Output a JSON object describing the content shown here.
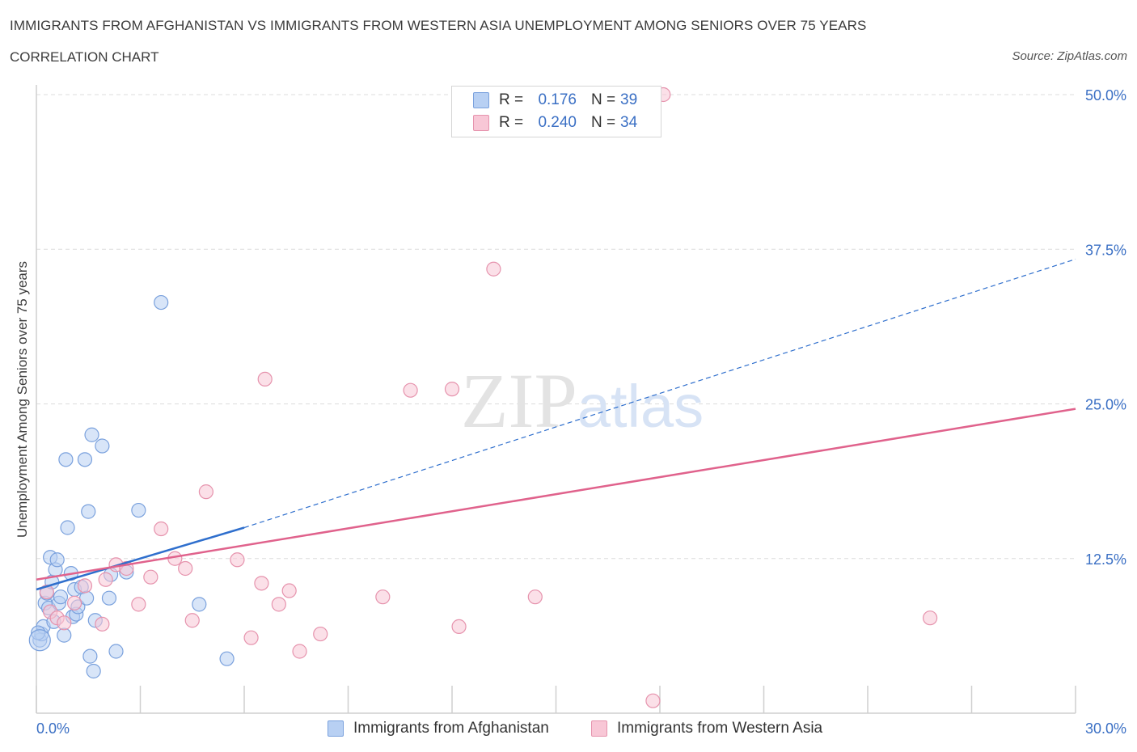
{
  "header": {
    "title": "IMMIGRANTS FROM AFGHANISTAN VS IMMIGRANTS FROM WESTERN ASIA UNEMPLOYMENT AMONG SENIORS OVER 75 YEARS",
    "subtitle": "CORRELATION CHART",
    "source": "Source: ZipAtlas.com"
  },
  "legend": {
    "rows": [
      {
        "r_label": "R =",
        "r_value": "0.176",
        "n_label": "N =",
        "n_value": "39"
      },
      {
        "r_label": "R =",
        "r_value": "0.240",
        "n_label": "N =",
        "n_value": "34"
      }
    ]
  },
  "bottom_legend": [
    "Immigrants from Afghanistan",
    "Immigrants from Western Asia"
  ],
  "chart_data": {
    "type": "scatter",
    "title": "IMMIGRANTS FROM AFGHANISTAN VS IMMIGRANTS FROM WESTERN ASIA UNEMPLOYMENT AMONG SENIORS OVER 75 YEARS",
    "subtitle": "CORRELATION CHART",
    "xlabel": "",
    "ylabel": "Unemployment Among Seniors over 75 years",
    "xlim": [
      0,
      30
    ],
    "ylim": [
      0,
      50
    ],
    "x_tick_labels": [
      "0.0%",
      "30.0%"
    ],
    "y_tick_values": [
      12.5,
      25,
      37.5,
      50
    ],
    "y_tick_labels": [
      "12.5%",
      "25.0%",
      "37.5%",
      "50.0%"
    ],
    "grid": true,
    "watermark": "ZIPatlas",
    "colors": {
      "series1_fill": "#b8d0f3",
      "series1_stroke": "#7aa1dd",
      "series1_line": "#2f6fcd",
      "series2_fill": "#f8c7d6",
      "series2_stroke": "#e693ad",
      "series2_line": "#e0628c",
      "tick_text": "#3a6fc4",
      "grid": "#dcdcdc",
      "axis": "#cfcfcf"
    },
    "series": [
      {
        "name": "Immigrants from Afghanistan",
        "R": 0.176,
        "N": 39,
        "trend": {
          "x0": 0,
          "y0": 10.0,
          "x1": 6.0,
          "y1": 15.0,
          "dashed_to_x": 30.0,
          "dashed_to_y": 36.7
        },
        "points": [
          [
            0.1,
            5.9
          ],
          [
            0.15,
            6.4
          ],
          [
            0.2,
            7.0
          ],
          [
            0.25,
            8.9
          ],
          [
            0.3,
            9.7
          ],
          [
            0.35,
            8.5
          ],
          [
            0.4,
            12.6
          ],
          [
            0.45,
            10.6
          ],
          [
            0.5,
            7.4
          ],
          [
            0.55,
            11.6
          ],
          [
            0.6,
            12.4
          ],
          [
            0.65,
            8.9
          ],
          [
            0.7,
            9.4
          ],
          [
            0.8,
            6.3
          ],
          [
            0.85,
            20.5
          ],
          [
            0.9,
            15.0
          ],
          [
            1.0,
            11.3
          ],
          [
            1.05,
            7.8
          ],
          [
            1.1,
            10.0
          ],
          [
            1.15,
            8.0
          ],
          [
            1.2,
            8.6
          ],
          [
            1.3,
            10.2
          ],
          [
            1.4,
            20.5
          ],
          [
            1.45,
            9.3
          ],
          [
            1.5,
            16.3
          ],
          [
            1.55,
            4.6
          ],
          [
            1.6,
            22.5
          ],
          [
            1.65,
            3.4
          ],
          [
            1.7,
            7.5
          ],
          [
            1.9,
            21.6
          ],
          [
            2.1,
            9.3
          ],
          [
            2.15,
            11.2
          ],
          [
            2.3,
            5.0
          ],
          [
            2.6,
            11.4
          ],
          [
            2.95,
            16.4
          ],
          [
            3.6,
            33.2
          ],
          [
            4.7,
            8.8
          ],
          [
            5.5,
            4.4
          ],
          [
            0.05,
            6.5
          ]
        ]
      },
      {
        "name": "Immigrants from Western Asia",
        "R": 0.24,
        "N": 34,
        "trend": {
          "x0": 0,
          "y0": 10.8,
          "x1": 30.0,
          "y1": 24.6
        },
        "points": [
          [
            0.3,
            9.8
          ],
          [
            0.4,
            8.2
          ],
          [
            0.6,
            7.7
          ],
          [
            0.8,
            7.3
          ],
          [
            1.1,
            8.9
          ],
          [
            1.4,
            10.3
          ],
          [
            1.9,
            7.2
          ],
          [
            2.0,
            10.8
          ],
          [
            2.3,
            12.0
          ],
          [
            2.6,
            11.7
          ],
          [
            2.95,
            8.8
          ],
          [
            3.3,
            11.0
          ],
          [
            3.6,
            14.9
          ],
          [
            4.0,
            12.5
          ],
          [
            4.3,
            11.7
          ],
          [
            4.5,
            7.5
          ],
          [
            4.9,
            17.9
          ],
          [
            5.8,
            12.4
          ],
          [
            6.2,
            6.1
          ],
          [
            6.5,
            10.5
          ],
          [
            6.6,
            27.0
          ],
          [
            7.0,
            8.8
          ],
          [
            7.3,
            9.9
          ],
          [
            7.6,
            5.0
          ],
          [
            8.2,
            6.4
          ],
          [
            10.0,
            9.4
          ],
          [
            10.8,
            26.1
          ],
          [
            12.0,
            26.2
          ],
          [
            12.2,
            7.0
          ],
          [
            13.2,
            35.9
          ],
          [
            14.4,
            9.4
          ],
          [
            17.8,
            1.0
          ],
          [
            18.1,
            50.0
          ],
          [
            25.8,
            7.7
          ]
        ]
      }
    ]
  }
}
